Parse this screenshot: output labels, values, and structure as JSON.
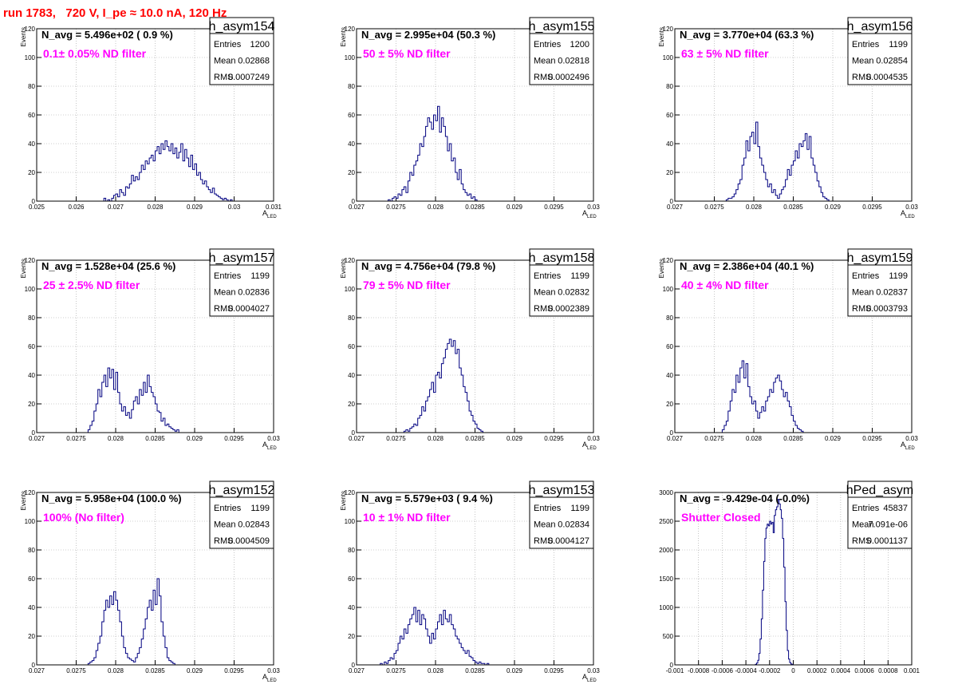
{
  "page_title": "run 1783,   720 V, I_pe ≈ 10.0 nA, 120 Hz",
  "stat_labels": {
    "entries": "Entries",
    "mean": "Mean",
    "rms": "RMS"
  },
  "colors": {
    "histogram": "#000080",
    "annotation": "#ff00ff",
    "title": "#ff0000",
    "grid": "#a0a0a0"
  },
  "chart_data": [
    {
      "type": "histogram",
      "hist_name": "h_asym154",
      "navg_text": "N_avg = 5.496e+02 ( 0.9 %)",
      "filter_text": "0.1± 0.05% ND filter",
      "entries": "1200",
      "mean": "0.02868",
      "rms": "0.0007249",
      "ylabel": "Events",
      "xlabel": "A_LED",
      "xlim": [
        0.025,
        0.031
      ],
      "ylim": [
        0,
        120
      ],
      "xticks": [
        0.025,
        0.026,
        0.027,
        0.028,
        0.029,
        0.03,
        0.031
      ],
      "xtick_labels": [
        "0.025",
        "0.026",
        "0.027",
        "0.028",
        "0.029",
        "0.03",
        "0.031"
      ],
      "yticks": [
        0,
        20,
        40,
        60,
        80,
        100,
        120
      ],
      "ytick_labels": [
        "0",
        "20",
        "40",
        "60",
        "80",
        "100",
        "120"
      ],
      "bin_start": 0.0267,
      "bin_width": 5e-05,
      "counts": [
        2,
        0,
        1,
        0,
        2,
        4,
        5,
        3,
        8,
        6,
        4,
        10,
        9,
        12,
        18,
        14,
        17,
        15,
        20,
        25,
        22,
        28,
        26,
        30,
        32,
        28,
        35,
        38,
        33,
        40,
        36,
        42,
        38,
        35,
        40,
        33,
        37,
        30,
        34,
        40,
        28,
        36,
        30,
        24,
        32,
        22,
        26,
        18,
        20,
        15,
        12,
        14,
        10,
        8,
        6,
        9,
        5,
        4,
        3,
        2,
        1,
        2,
        1,
        0,
        1
      ]
    },
    {
      "type": "histogram",
      "hist_name": "h_asym155",
      "navg_text": "N_avg = 2.995e+04 (50.3 %)",
      "filter_text": "50 ± 5% ND filter",
      "entries": "1200",
      "mean": "0.02818",
      "rms": "0.0002496",
      "ylabel": "Events",
      "xlabel": "A_LED",
      "xlim": [
        0.027,
        0.03
      ],
      "ylim": [
        0,
        120
      ],
      "xticks": [
        0.027,
        0.0275,
        0.028,
        0.0285,
        0.029,
        0.0295,
        0.03
      ],
      "xtick_labels": [
        "0.027",
        "0.0275",
        "0.028",
        "0.0285",
        "0.029",
        "0.0295",
        "0.03"
      ],
      "yticks": [
        0,
        20,
        40,
        60,
        80,
        100,
        120
      ],
      "ytick_labels": [
        "0",
        "20",
        "40",
        "60",
        "80",
        "100",
        "120"
      ],
      "bin_start": 0.0274,
      "bin_width": 2.5e-05,
      "counts": [
        1,
        0,
        2,
        3,
        2,
        5,
        4,
        8,
        10,
        6,
        14,
        20,
        18,
        25,
        28,
        32,
        40,
        38,
        45,
        52,
        58,
        55,
        50,
        60,
        56,
        66,
        48,
        58,
        52,
        45,
        35,
        40,
        28,
        30,
        20,
        15,
        22,
        12,
        8,
        6,
        4,
        5,
        2,
        3,
        1
      ]
    },
    {
      "type": "histogram",
      "hist_name": "h_asym156",
      "navg_text": "N_avg = 3.770e+04 (63.3 %)",
      "filter_text": "63 ± 5% ND filter",
      "entries": "1199",
      "mean": "0.02854",
      "rms": "0.0004535",
      "ylabel": "Events",
      "xlabel": "A_LED",
      "xlim": [
        0.027,
        0.03
      ],
      "ylim": [
        0,
        120
      ],
      "xticks": [
        0.027,
        0.0275,
        0.028,
        0.0285,
        0.029,
        0.0295,
        0.03
      ],
      "xtick_labels": [
        "0.027",
        "0.0275",
        "0.028",
        "0.0285",
        "0.029",
        "0.0295",
        "0.03"
      ],
      "yticks": [
        0,
        20,
        40,
        60,
        80,
        100,
        120
      ],
      "ytick_labels": [
        "0",
        "20",
        "40",
        "60",
        "80",
        "100",
        "120"
      ],
      "bin_start": 0.02765,
      "bin_width": 2.5e-05,
      "counts": [
        1,
        2,
        2,
        3,
        5,
        8,
        12,
        15,
        25,
        30,
        42,
        35,
        45,
        48,
        40,
        55,
        38,
        30,
        25,
        20,
        15,
        10,
        12,
        6,
        8,
        4,
        2,
        5,
        8,
        10,
        15,
        22,
        18,
        25,
        28,
        35,
        30,
        40,
        38,
        42,
        47,
        36,
        45,
        30,
        25,
        20,
        14,
        10,
        6,
        3,
        2,
        1
      ]
    },
    {
      "type": "histogram",
      "hist_name": "h_asym157",
      "navg_text": "N_avg = 1.528e+04 (25.6 %)",
      "filter_text": "25 ± 2.5% ND filter",
      "entries": "1199",
      "mean": "0.02836",
      "rms": "0.0004027",
      "ylabel": "Events",
      "xlabel": "A_LED",
      "xlim": [
        0.027,
        0.03
      ],
      "ylim": [
        0,
        120
      ],
      "xticks": [
        0.027,
        0.0275,
        0.028,
        0.0285,
        0.029,
        0.0295,
        0.03
      ],
      "xtick_labels": [
        "0.027",
        "0.0275",
        "0.028",
        "0.0285",
        "0.029",
        "0.0295",
        "0.03"
      ],
      "yticks": [
        0,
        20,
        40,
        60,
        80,
        100,
        120
      ],
      "ytick_labels": [
        "0",
        "20",
        "40",
        "60",
        "80",
        "100",
        "120"
      ],
      "bin_start": 0.02765,
      "bin_width": 2.5e-05,
      "counts": [
        2,
        5,
        8,
        15,
        20,
        30,
        25,
        35,
        40,
        32,
        45,
        38,
        44,
        30,
        42,
        28,
        20,
        15,
        18,
        12,
        14,
        10,
        16,
        22,
        25,
        20,
        30,
        26,
        35,
        28,
        40,
        32,
        28,
        25,
        20,
        15,
        14,
        8,
        10,
        5,
        6,
        4,
        3,
        2,
        1,
        2
      ]
    },
    {
      "type": "histogram",
      "hist_name": "h_asym158",
      "navg_text": "N_avg = 4.756e+04 (79.8 %)",
      "filter_text": "79 ± 5% ND filter",
      "entries": "1199",
      "mean": "0.02832",
      "rms": "0.0002389",
      "ylabel": "Events",
      "xlabel": "A_LED",
      "xlim": [
        0.027,
        0.03
      ],
      "ylim": [
        0,
        120
      ],
      "xticks": [
        0.027,
        0.0275,
        0.028,
        0.0285,
        0.029,
        0.0295,
        0.03
      ],
      "xtick_labels": [
        "0.027",
        "0.0275",
        "0.028",
        "0.0285",
        "0.029",
        "0.0295",
        "0.03"
      ],
      "yticks": [
        0,
        20,
        40,
        60,
        80,
        100,
        120
      ],
      "ytick_labels": [
        "0",
        "20",
        "40",
        "60",
        "80",
        "100",
        "120"
      ],
      "bin_start": 0.0276,
      "bin_width": 2.5e-05,
      "counts": [
        1,
        2,
        1,
        3,
        4,
        6,
        5,
        10,
        12,
        18,
        15,
        22,
        25,
        30,
        35,
        28,
        40,
        42,
        38,
        48,
        52,
        58,
        62,
        65,
        60,
        64,
        55,
        58,
        45,
        40,
        32,
        28,
        22,
        15,
        12,
        8,
        6,
        3,
        2,
        1
      ]
    },
    {
      "type": "histogram",
      "hist_name": "h_asym159",
      "navg_text": "N_avg = 2.386e+04 (40.1 %)",
      "filter_text": "40 ± 4% ND filter",
      "entries": "1199",
      "mean": "0.02837",
      "rms": "0.0003793",
      "ylabel": "Events",
      "xlabel": "A_LED",
      "xlim": [
        0.027,
        0.03
      ],
      "ylim": [
        0,
        120
      ],
      "xticks": [
        0.027,
        0.0275,
        0.028,
        0.0285,
        0.029,
        0.0295,
        0.03
      ],
      "xtick_labels": [
        "0.027",
        "0.0275",
        "0.028",
        "0.0285",
        "0.029",
        "0.0295",
        "0.03"
      ],
      "yticks": [
        0,
        20,
        40,
        60,
        80,
        100,
        120
      ],
      "ytick_labels": [
        "0",
        "20",
        "40",
        "60",
        "80",
        "100",
        "120"
      ],
      "bin_start": 0.0276,
      "bin_width": 2.5e-05,
      "counts": [
        2,
        5,
        8,
        15,
        22,
        30,
        28,
        40,
        35,
        45,
        50,
        38,
        48,
        32,
        25,
        20,
        22,
        15,
        10,
        14,
        18,
        15,
        22,
        25,
        30,
        28,
        35,
        38,
        40,
        36,
        30,
        25,
        28,
        22,
        18,
        12,
        8,
        5,
        3,
        2,
        1
      ]
    },
    {
      "type": "histogram",
      "hist_name": "h_asym152",
      "navg_text": "N_avg = 5.958e+04 (100.0 %)",
      "filter_text": "100% (No filter)",
      "entries": "1199",
      "mean": "0.02843",
      "rms": "0.0004509",
      "ylabel": "Events",
      "xlabel": "A_LED",
      "xlim": [
        0.027,
        0.03
      ],
      "ylim": [
        0,
        120
      ],
      "xticks": [
        0.027,
        0.0275,
        0.028,
        0.0285,
        0.029,
        0.0295,
        0.03
      ],
      "xtick_labels": [
        "0.027",
        "0.0275",
        "0.028",
        "0.0285",
        "0.029",
        "0.0295",
        "0.03"
      ],
      "yticks": [
        0,
        20,
        40,
        60,
        80,
        100,
        120
      ],
      "ytick_labels": [
        "0",
        "20",
        "40",
        "60",
        "80",
        "100",
        "120"
      ],
      "bin_start": 0.02765,
      "bin_width": 2.5e-05,
      "counts": [
        1,
        2,
        3,
        5,
        10,
        15,
        20,
        30,
        38,
        45,
        40,
        48,
        42,
        51,
        45,
        38,
        30,
        20,
        12,
        8,
        5,
        4,
        3,
        2,
        5,
        8,
        12,
        18,
        25,
        32,
        40,
        45,
        38,
        52,
        42,
        60,
        48,
        30,
        20,
        12,
        5,
        3,
        2,
        1
      ]
    },
    {
      "type": "histogram",
      "hist_name": "h_asym153",
      "navg_text": "N_avg = 5.579e+03 ( 9.4 %)",
      "filter_text": "10 ± 1% ND filter",
      "entries": "1199",
      "mean": "0.02834",
      "rms": "0.0004127",
      "ylabel": "Events",
      "xlabel": "A_LED",
      "xlim": [
        0.027,
        0.03
      ],
      "ylim": [
        0,
        120
      ],
      "xticks": [
        0.027,
        0.0275,
        0.028,
        0.0285,
        0.029,
        0.0295,
        0.03
      ],
      "xtick_labels": [
        "0.027",
        "0.0275",
        "0.028",
        "0.0285",
        "0.029",
        "0.0295",
        "0.03"
      ],
      "yticks": [
        0,
        20,
        40,
        60,
        80,
        100,
        120
      ],
      "ytick_labels": [
        "0",
        "20",
        "40",
        "60",
        "80",
        "100",
        "120"
      ],
      "bin_start": 0.0273,
      "bin_width": 2.5e-05,
      "counts": [
        1,
        0,
        2,
        1,
        3,
        5,
        4,
        8,
        10,
        15,
        20,
        18,
        25,
        22,
        28,
        32,
        35,
        40,
        30,
        38,
        28,
        35,
        32,
        25,
        20,
        15,
        22,
        18,
        25,
        30,
        35,
        28,
        38,
        32,
        30,
        35,
        28,
        25,
        20,
        18,
        15,
        12,
        10,
        8,
        10,
        6,
        5,
        3,
        2,
        1,
        2,
        1,
        1,
        0,
        1
      ]
    },
    {
      "type": "histogram",
      "hist_name": "hPed_asym",
      "navg_text": "N_avg = -9.429e-04 (-0.0%)",
      "filter_text": "Shutter Closed",
      "entries": "45837",
      "mean": "7.091e-06",
      "rms": "0.0001137",
      "ylabel": "",
      "xlabel": "",
      "xlim": [
        -0.001,
        0.001
      ],
      "ylim": [
        0,
        3000
      ],
      "xticks": [
        -0.001,
        -0.0008,
        -0.0006,
        -0.0004,
        -0.0002,
        0,
        0.0002,
        0.0004,
        0.0006,
        0.0008,
        0.001
      ],
      "xtick_labels": [
        "-0.001",
        "-0.0008",
        "-0.0006",
        "-0.0004",
        "-0.0002",
        "0",
        "0.0002",
        "0.0004",
        "0.0006",
        "0.0008",
        "0.001"
      ],
      "yticks": [
        0,
        500,
        1000,
        1500,
        2000,
        2500,
        3000
      ],
      "ytick_labels": [
        "0",
        "500",
        "1000",
        "1500",
        "2000",
        "2500",
        "3000"
      ],
      "bin_start": -0.00032,
      "bin_width": 1e-05,
      "counts": [
        10,
        30,
        80,
        200,
        450,
        800,
        1300,
        1800,
        2200,
        2380,
        2450,
        2420,
        2500,
        2450,
        2480,
        2300,
        2600,
        2700,
        2750,
        2880,
        2800,
        2700,
        2550,
        2200,
        1700,
        1100,
        600,
        250,
        100,
        40,
        15,
        5
      ]
    }
  ]
}
